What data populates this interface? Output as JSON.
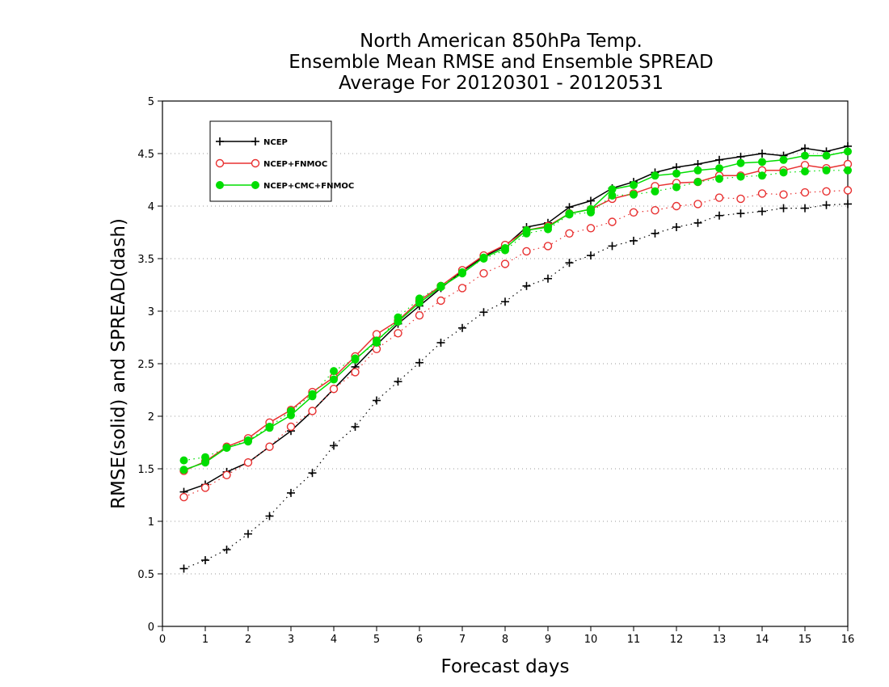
{
  "chart_data": {
    "type": "line",
    "title": [
      "North American 850hPa Temp.",
      "Ensemble Mean RMSE and Ensemble SPREAD",
      "Average For 20120301 - 20120531"
    ],
    "xlabel": "Forecast days",
    "ylabel": "RMSE(solid) and SPREAD(dash)",
    "xlim": [
      0,
      16
    ],
    "ylim": [
      0,
      5
    ],
    "xticks": [
      0,
      1,
      2,
      3,
      4,
      5,
      6,
      7,
      8,
      9,
      10,
      11,
      12,
      13,
      14,
      15,
      16
    ],
    "yticks": [
      0,
      0.5,
      1,
      1.5,
      2,
      2.5,
      3,
      3.5,
      4,
      4.5,
      5
    ],
    "grid": "horizontal dotted",
    "legend_position": "top-left",
    "x": [
      0.5,
      1,
      1.5,
      2,
      2.5,
      3,
      3.5,
      4,
      4.5,
      5,
      5.5,
      6,
      6.5,
      7,
      7.5,
      8,
      8.5,
      9,
      9.5,
      10,
      10.5,
      11,
      11.5,
      12,
      12.5,
      13,
      13.5,
      14,
      14.5,
      15,
      15.5,
      16
    ],
    "series": [
      {
        "name": "NCEP",
        "color": "#000000",
        "marker": "plus",
        "rmse": [
          1.28,
          1.35,
          1.47,
          1.56,
          1.71,
          1.86,
          2.05,
          2.26,
          2.47,
          2.68,
          2.88,
          3.05,
          3.22,
          3.38,
          3.52,
          3.62,
          3.8,
          3.84,
          3.99,
          4.05,
          4.17,
          4.23,
          4.32,
          4.37,
          4.4,
          4.44,
          4.47,
          4.5,
          4.48,
          4.55,
          4.52,
          4.57
        ],
        "spread": [
          0.55,
          0.63,
          0.73,
          0.88,
          1.05,
          1.27,
          1.46,
          1.72,
          1.9,
          2.15,
          2.33,
          2.51,
          2.7,
          2.84,
          2.99,
          3.09,
          3.24,
          3.31,
          3.46,
          3.53,
          3.62,
          3.67,
          3.74,
          3.8,
          3.84,
          3.91,
          3.93,
          3.95,
          3.98,
          3.98,
          4.01,
          4.02
        ]
      },
      {
        "name": "NCEP+FNMOC",
        "color": "#e83030",
        "marker": "open-circle",
        "rmse": [
          1.48,
          1.57,
          1.71,
          1.79,
          1.94,
          2.06,
          2.23,
          2.37,
          2.57,
          2.78,
          2.91,
          3.1,
          3.24,
          3.39,
          3.53,
          3.63,
          3.77,
          3.81,
          3.93,
          3.97,
          4.07,
          4.12,
          4.19,
          4.22,
          4.23,
          4.29,
          4.29,
          4.34,
          4.34,
          4.39,
          4.36,
          4.4
        ],
        "spread": [
          1.23,
          1.32,
          1.44,
          1.56,
          1.71,
          1.9,
          2.05,
          2.26,
          2.42,
          2.64,
          2.79,
          2.96,
          3.1,
          3.22,
          3.36,
          3.45,
          3.57,
          3.62,
          3.74,
          3.79,
          3.85,
          3.94,
          3.96,
          4.0,
          4.02,
          4.08,
          4.07,
          4.12,
          4.11,
          4.13,
          4.14,
          4.15
        ]
      },
      {
        "name": "NCEP+CMC+FNMOC",
        "color": "#00dd00",
        "marker": "filled-circle",
        "rmse": [
          1.49,
          1.56,
          1.7,
          1.76,
          1.89,
          2.01,
          2.19,
          2.35,
          2.54,
          2.72,
          2.9,
          3.08,
          3.23,
          3.36,
          3.51,
          3.6,
          3.77,
          3.8,
          3.93,
          3.97,
          4.16,
          4.2,
          4.29,
          4.31,
          4.34,
          4.36,
          4.41,
          4.42,
          4.44,
          4.48,
          4.48,
          4.52
        ],
        "spread": [
          1.58,
          1.61,
          1.7,
          1.77,
          1.9,
          2.05,
          2.21,
          2.43,
          2.55,
          2.7,
          2.94,
          3.12,
          3.24,
          3.37,
          3.5,
          3.58,
          3.74,
          3.78,
          3.92,
          3.94,
          4.1,
          4.11,
          4.14,
          4.18,
          4.23,
          4.26,
          4.28,
          4.29,
          4.32,
          4.33,
          4.34,
          4.34
        ]
      }
    ]
  }
}
